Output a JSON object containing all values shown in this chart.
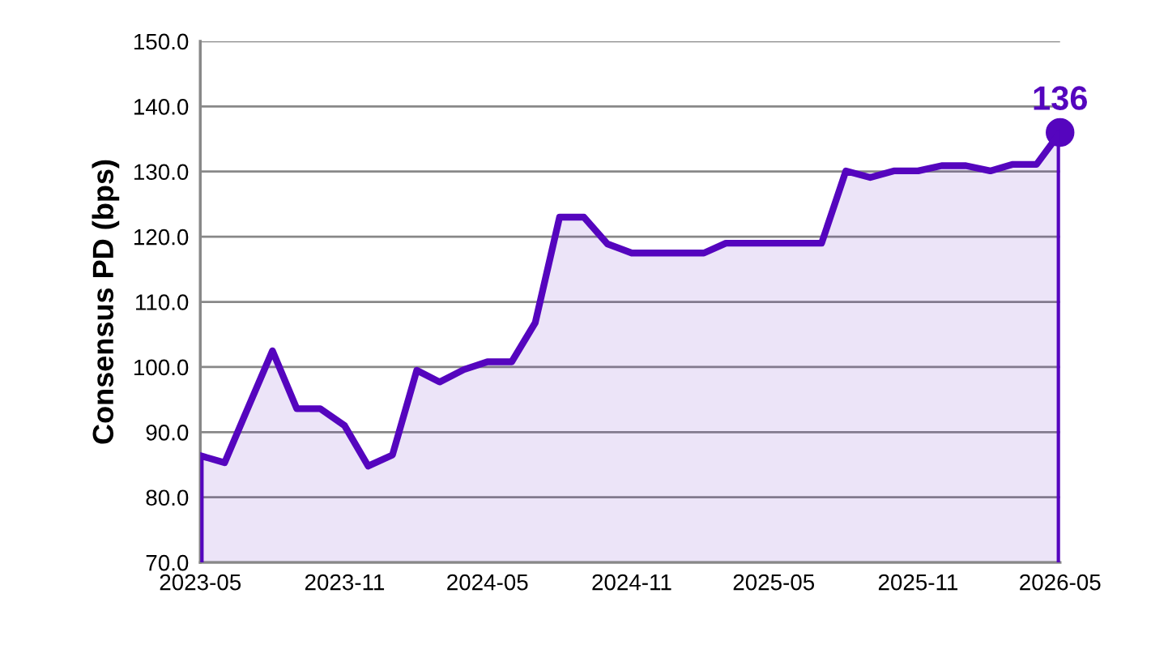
{
  "chart_data": {
    "type": "area",
    "ylabel": "Consensus PD (bps)",
    "x": [
      "2023-05",
      "2023-06",
      "2023-07",
      "2023-08",
      "2023-09",
      "2023-10",
      "2023-11",
      "2023-12",
      "2024-01",
      "2024-02",
      "2024-03",
      "2024-04",
      "2024-05",
      "2024-06",
      "2024-07",
      "2024-08",
      "2024-09",
      "2024-10",
      "2024-11",
      "2024-12",
      "2025-01",
      "2025-02",
      "2025-03",
      "2025-04",
      "2025-05",
      "2025-06",
      "2025-07",
      "2025-08",
      "2025-09",
      "2025-10",
      "2025-11",
      "2025-12",
      "2026-01",
      "2026-02",
      "2026-03",
      "2026-04",
      "2026-05"
    ],
    "series": [
      {
        "color": "#5505be",
        "values": [
          86.4,
          85.3,
          93.8,
          102.5,
          93.6,
          93.6,
          91.0,
          84.8,
          86.5,
          99.5,
          97.7,
          99.6,
          100.8,
          100.8,
          106.8,
          123.0,
          123.0,
          118.9,
          117.5,
          117.5,
          117.5,
          117.5,
          119.0,
          119.0,
          119.0,
          119.0,
          119.0,
          130.1,
          129.1,
          130.1,
          130.1,
          130.9,
          130.9,
          130.1,
          131.1,
          131.1,
          136
        ]
      },
      {
        "type": "scatter",
        "color": "#5505be",
        "x": [
          "2026-05"
        ],
        "values": [
          136
        ],
        "value_labels": [
          "136"
        ],
        "marker": "circle"
      }
    ],
    "xlim": [
      "2023-05",
      "2026-05"
    ],
    "xticks": [
      "2023-05",
      "2023-11",
      "2024-05",
      "2024-11",
      "2025-05",
      "2025-11",
      "2026-05"
    ],
    "ylim": [
      70,
      150
    ],
    "yticks": [
      {
        "value": 70,
        "label": "70.0"
      },
      {
        "value": 80,
        "label": "80.0"
      },
      {
        "value": 90,
        "label": "90.0"
      },
      {
        "value": 100,
        "label": "100.0"
      },
      {
        "value": 110,
        "label": "110.0"
      },
      {
        "value": 120,
        "label": "120.0"
      },
      {
        "value": 130,
        "label": "130.0"
      },
      {
        "value": 140,
        "label": "140.0"
      },
      {
        "value": 150,
        "label": "150.0"
      }
    ],
    "grid": "y"
  }
}
